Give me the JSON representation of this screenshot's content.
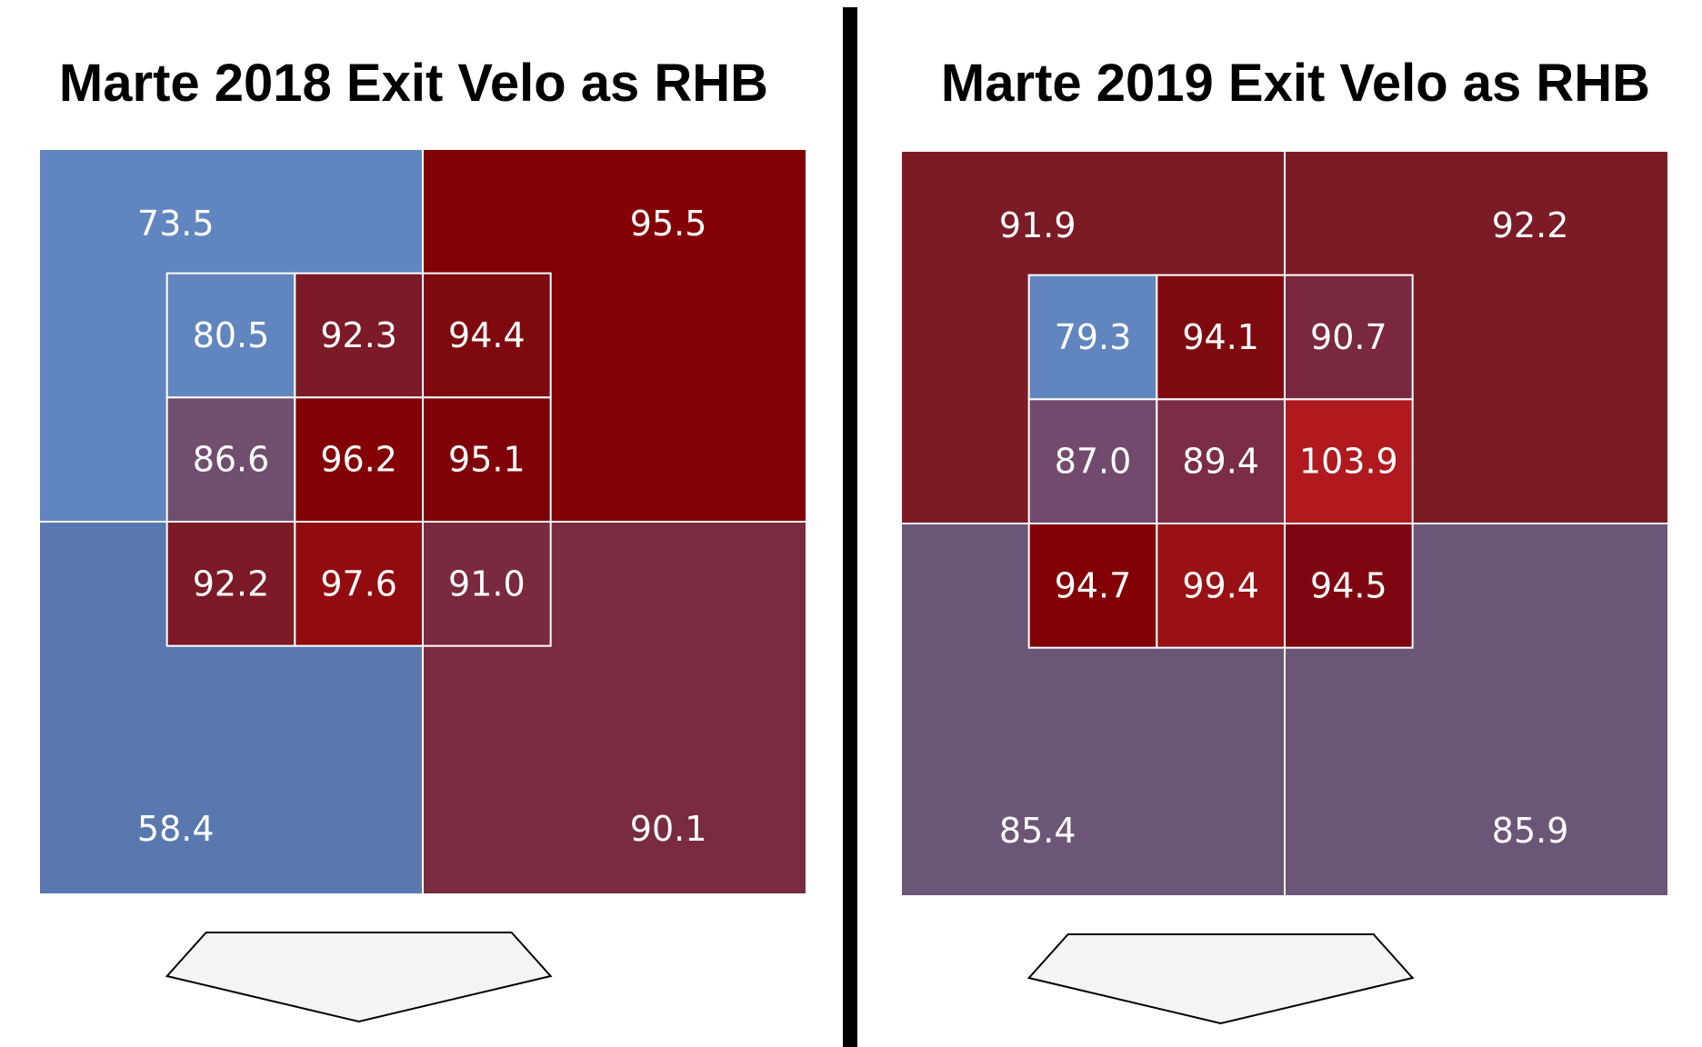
{
  "chart_data": [
    {
      "type": "heatmap",
      "title": "Marte 2018 Exit Velo as RHB",
      "outer_zones": {
        "top_left": 73.5,
        "top_right": 95.5,
        "bottom_left": 58.4,
        "bottom_right": 90.1
      },
      "inner_zones": [
        [
          80.5,
          92.3,
          94.4
        ],
        [
          86.6,
          96.2,
          95.1
        ],
        [
          92.2,
          97.6,
          91.0
        ]
      ],
      "outer_colors": {
        "top_left": "#6186BF",
        "top_right": "#830005",
        "bottom_left": "#5878AF",
        "bottom_right": "#792B3F"
      },
      "inner_colors": [
        [
          "#6186BF",
          "#7C1A27",
          "#7E0A0F"
        ],
        [
          "#714D6E",
          "#830005",
          "#800209"
        ],
        [
          "#7C1A27",
          "#920B0E",
          "#7A2A3E"
        ]
      ]
    },
    {
      "type": "heatmap",
      "title": "Marte 2019 Exit Velo as RHB",
      "outer_zones": {
        "top_left": 91.9,
        "top_right": 92.2,
        "bottom_left": 85.4,
        "bottom_right": 85.9
      },
      "inner_zones": [
        [
          79.3,
          94.1,
          90.7
        ],
        [
          87.0,
          89.4,
          103.9
        ],
        [
          94.7,
          99.4,
          94.5
        ]
      ],
      "outer_colors": {
        "top_left": "#7B1B26",
        "top_right": "#7B1B26",
        "bottom_left": "#6C5677",
        "bottom_right": "#6C5677"
      },
      "inner_colors": [
        [
          "#6186BF",
          "#7E0A0F",
          "#7A283D"
        ],
        [
          "#724A6D",
          "#7A2D45",
          "#B0191E"
        ],
        [
          "#830005",
          "#9A1115",
          "#7F0610"
        ]
      ]
    }
  ]
}
